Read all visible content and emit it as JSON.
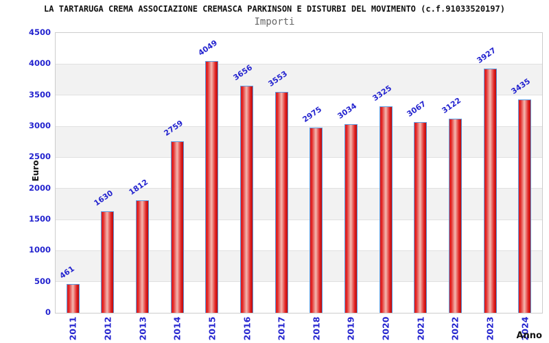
{
  "header": {
    "title": "LA TARTARUGA CREMA ASSOCIAZIONE CREMASCA PARKINSON E DISTURBI DEL MOVIMENTO (c.f.91033520197)",
    "subtitle": "Importi"
  },
  "chart_data": {
    "type": "bar",
    "title": "LA TARTARUGA CREMA ASSOCIAZIONE CREMASCA PARKINSON E DISTURBI DEL MOVIMENTO (c.f.91033520197)",
    "subtitle": "Importi",
    "xlabel": "Anno",
    "ylabel": "Euro",
    "categories": [
      "2011",
      "2012",
      "2013",
      "2014",
      "2015",
      "2016",
      "2017",
      "2018",
      "2019",
      "2020",
      "2021",
      "2022",
      "2023",
      "2024"
    ],
    "values": [
      461,
      1630,
      1812,
      2759,
      4049,
      3656,
      3553,
      2975,
      3034,
      3325,
      3067,
      3122,
      3927,
      3435
    ],
    "ylim": [
      0,
      4500
    ],
    "ytick_step": 500,
    "grid": true,
    "legend": "none",
    "value_labels_rotation_deg": -35,
    "xtick_rotation_deg": -90
  },
  "style": {
    "title_color": "#111111",
    "subtitle_color": "#666666",
    "tick_label_color": "#2424cf",
    "value_label_color": "#2424cf",
    "axis_title_color": "#111111",
    "gridline_color": "#e0e0e0",
    "band_color": "#f2f2f2",
    "band_alt_color": "#ffffff",
    "plot_border_color": "#cccccc",
    "bar_border_color": "#5a9ae0",
    "bar_gradient_left": "#e02020",
    "bar_gradient_mid": "#f4b8b0",
    "bar_gradient_right": "#b80d0d"
  }
}
